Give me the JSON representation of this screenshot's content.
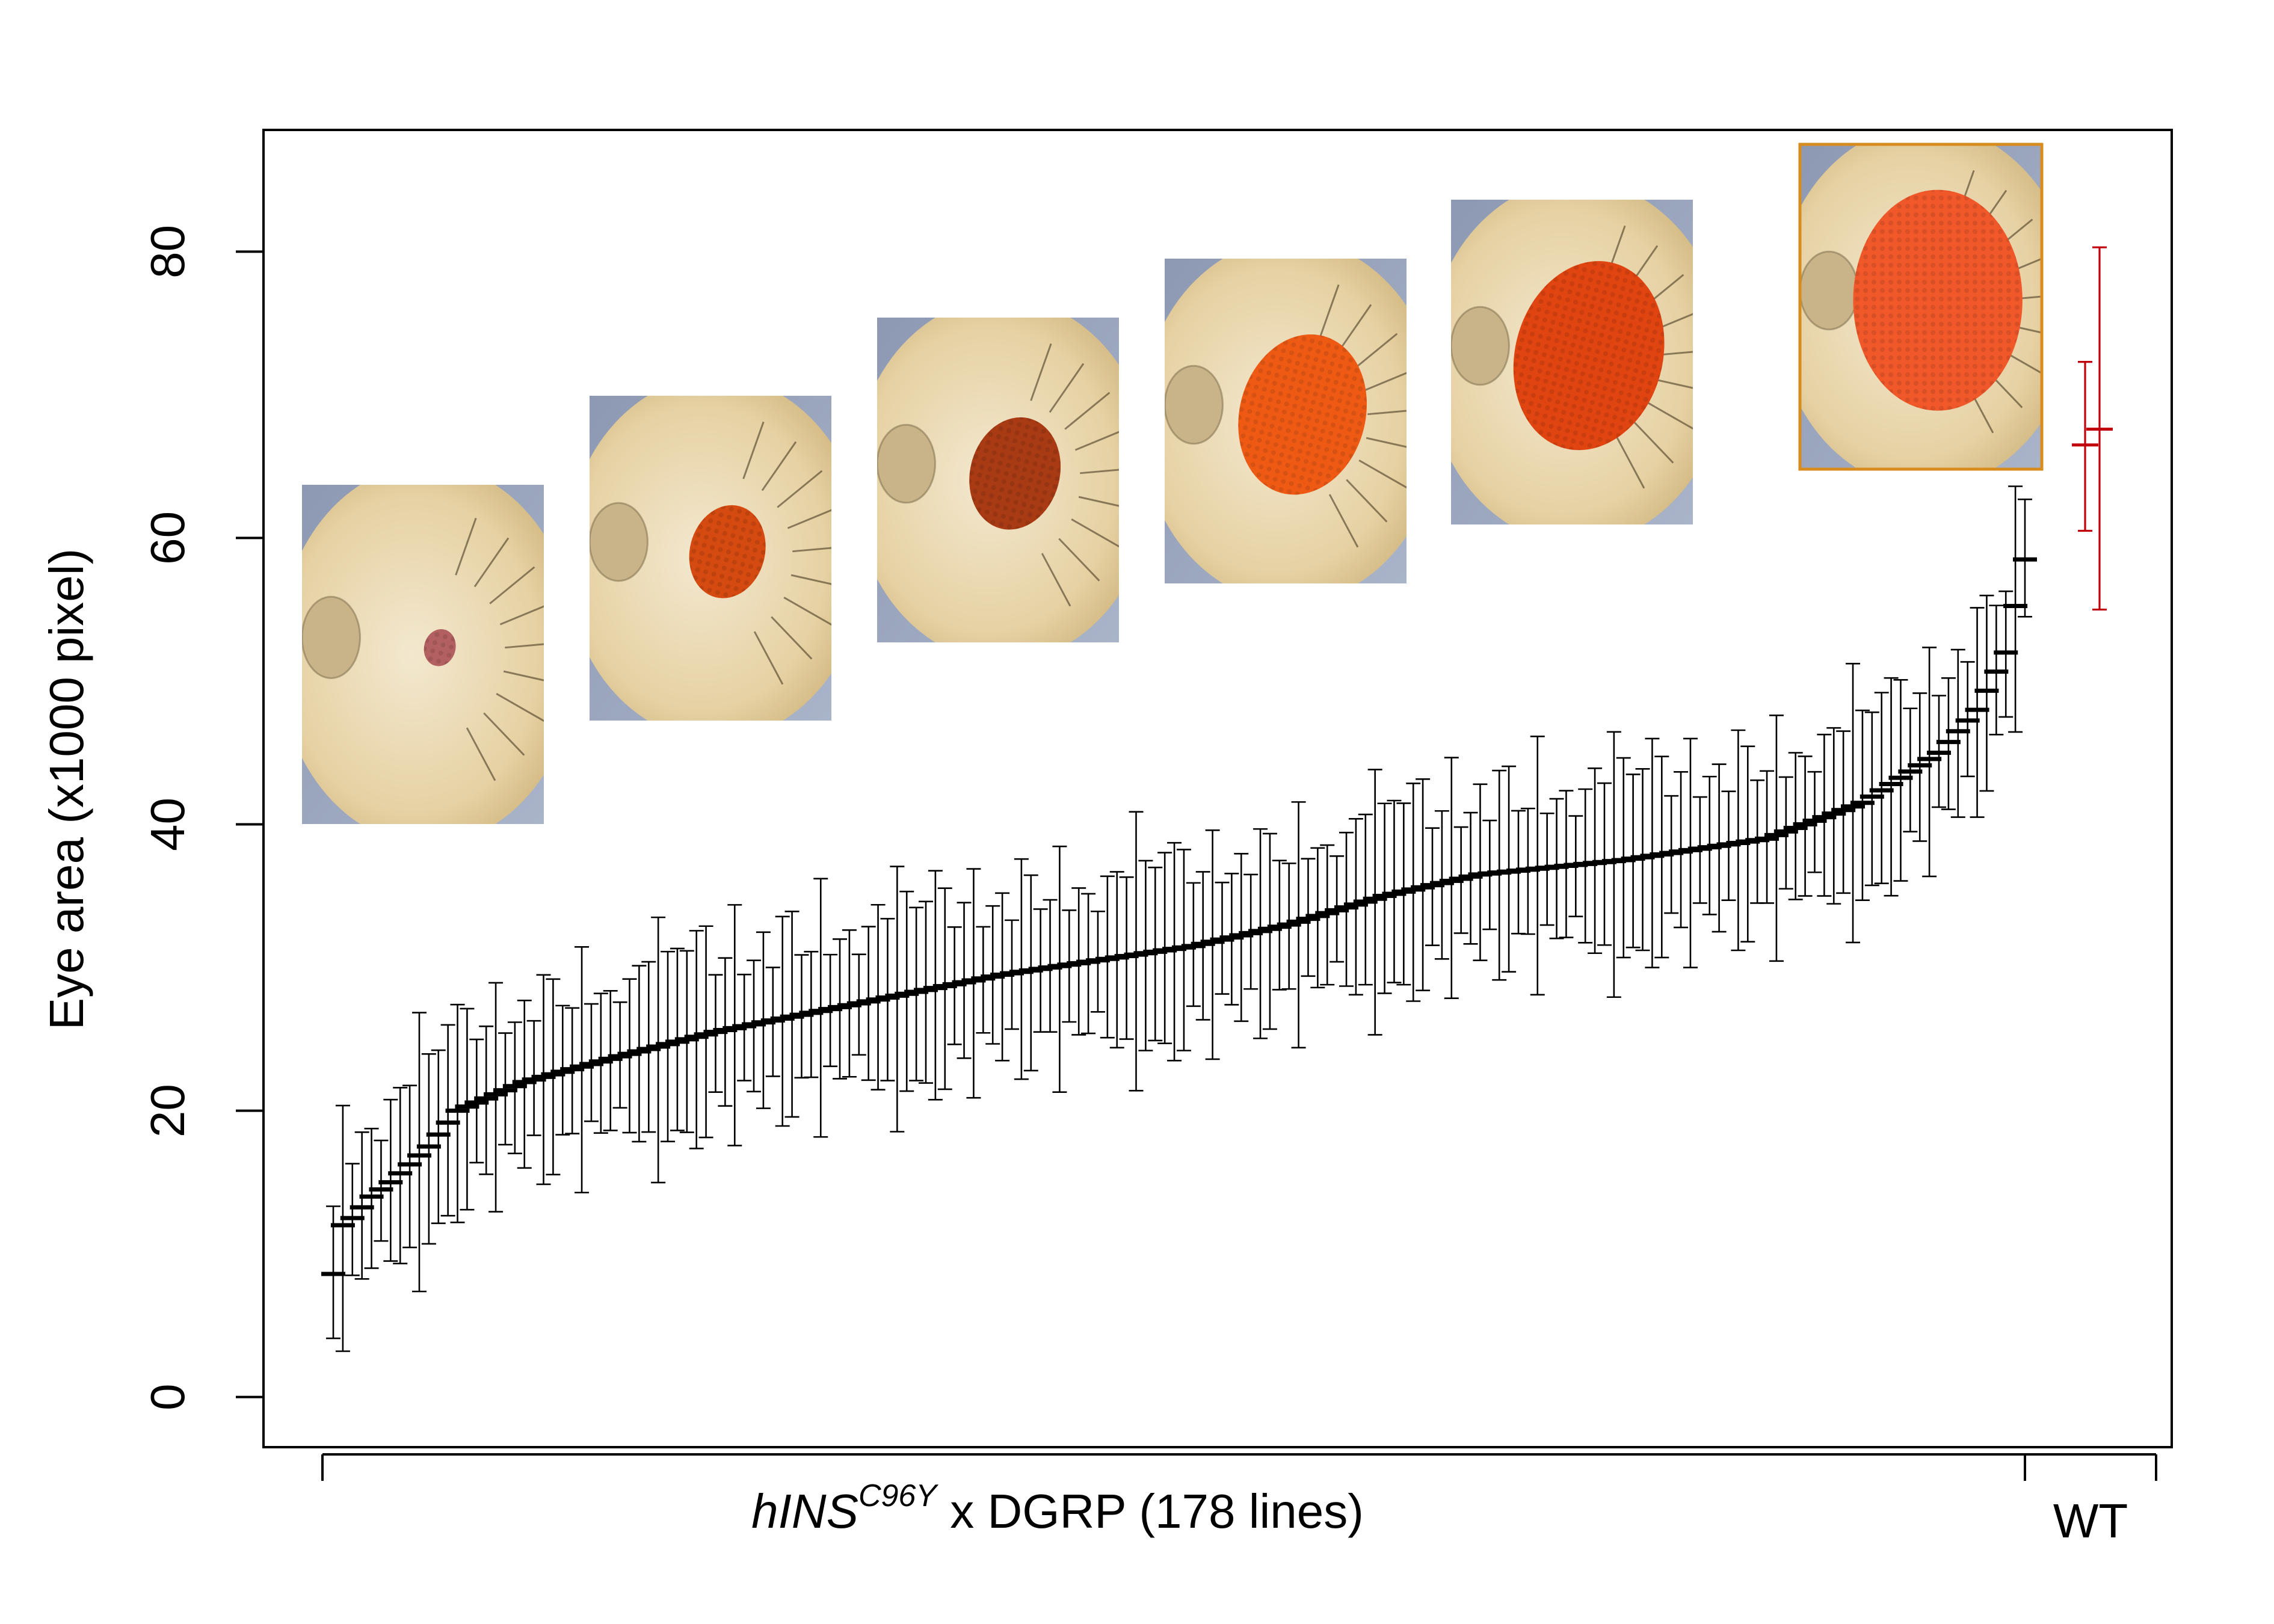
{
  "chart_data": {
    "type": "scatter",
    "ylabel": "Eye area (x1000 pixel)",
    "xlabel_parts": {
      "italic": "hINS",
      "superscript": "C96Y",
      "rest": " x DGRP (178 lines)"
    },
    "wt_label": "WT",
    "ylim": [
      -3.5,
      88.5
    ],
    "yticks": [
      "0",
      "20",
      "40",
      "60",
      "80"
    ],
    "dgrp_series": {
      "name": "hINS C96Y x DGRP",
      "color": "#000000",
      "count": 178,
      "anchor_means": [
        [
          0,
          8.6
        ],
        [
          1,
          12.0
        ],
        [
          2,
          12.5
        ],
        [
          4,
          14.0
        ],
        [
          6,
          15.0
        ],
        [
          10,
          17.5
        ],
        [
          13,
          20.0
        ],
        [
          20,
          22.0
        ],
        [
          30,
          23.8
        ],
        [
          40,
          25.5
        ],
        [
          55,
          27.5
        ],
        [
          70,
          29.5
        ],
        [
          90,
          31.5
        ],
        [
          100,
          33.0
        ],
        [
          110,
          35.0
        ],
        [
          120,
          36.5
        ],
        [
          135,
          37.5
        ],
        [
          150,
          39.0
        ],
        [
          160,
          41.5
        ],
        [
          168,
          45.0
        ],
        [
          172,
          48.0
        ],
        [
          175,
          52.0
        ],
        [
          177,
          58.5
        ]
      ],
      "half_range_pattern": [
        4.5,
        3.8,
        6.2,
        5.0,
        7.5,
        4.2,
        5.8,
        8.8,
        4.7,
        6.5,
        3.6,
        7.0,
        5.3,
        9.5,
        4.0,
        6.0,
        7.8,
        5.5,
        4.4,
        8.2,
        6.8,
        5.0,
        3.9,
        7.2,
        6.3
      ]
    },
    "wt_series": {
      "name": "WT",
      "color": "#c0000c",
      "points": [
        {
          "mean": 66.5,
          "low": 60.5,
          "high": 72.3
        },
        {
          "mean": 67.6,
          "low": 55.0,
          "high": 80.3
        }
      ]
    },
    "photos": [
      {
        "name": "eye-photo-1",
        "eye_level": 0.05,
        "eye_color": "#b36060"
      },
      {
        "name": "eye-photo-2",
        "eye_level": 0.35,
        "eye_color": "#d44a10"
      },
      {
        "name": "eye-photo-3",
        "eye_level": 0.45,
        "eye_color": "#a83a14"
      },
      {
        "name": "eye-photo-4",
        "eye_level": 0.7,
        "eye_color": "#ee5a14"
      },
      {
        "name": "eye-photo-5",
        "eye_level": 0.85,
        "eye_color": "#e04410"
      },
      {
        "name": "eye-photo-6",
        "eye_level": 1.0,
        "eye_color": "#f0582a"
      }
    ]
  }
}
